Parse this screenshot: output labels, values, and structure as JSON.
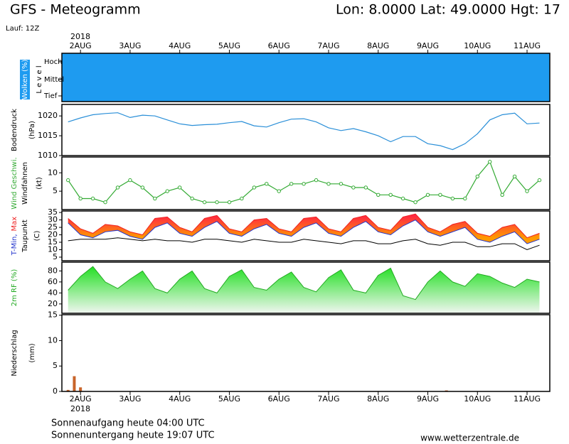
{
  "header": {
    "title": "GFS - Meteogramm",
    "location": "Lon: 8.0000 Lat: 49.0000 Hgt: 17",
    "run": "Lauf: 12Z",
    "year": "2018"
  },
  "footer": {
    "sunrise": "Sonnenaufgang heute 04:00 UTC",
    "sunset": "Sonnenuntergang heute 19:07 UTC",
    "source": "www.wetterzentrale.de"
  },
  "time_axis": {
    "xlim": [
      15,
      251
    ],
    "xticks": [
      {
        "value": 24,
        "label": "2AUG"
      },
      {
        "value": 48,
        "label": "3AUG"
      },
      {
        "value": 72,
        "label": "4AUG"
      },
      {
        "value": 96,
        "label": "5AUG"
      },
      {
        "value": 120,
        "label": "6AUG"
      },
      {
        "value": 144,
        "label": "7AUG"
      },
      {
        "value": 168,
        "label": "8AUG"
      },
      {
        "value": 192,
        "label": "9AUG"
      },
      {
        "value": 216,
        "label": "10AUG"
      },
      {
        "value": 240,
        "label": "11AUG"
      }
    ],
    "x": [
      18,
      24,
      30,
      36,
      42,
      48,
      54,
      60,
      66,
      72,
      78,
      84,
      90,
      96,
      102,
      108,
      114,
      120,
      126,
      132,
      138,
      144,
      150,
      156,
      162,
      168,
      174,
      180,
      186,
      192,
      198,
      204,
      210,
      216,
      222,
      228,
      234,
      240,
      246
    ]
  },
  "chart_data": [
    {
      "type": "clouds",
      "ylabel": [
        "Wolken (%)",
        "L e v e l"
      ],
      "levels": [
        "Hoch",
        "Mittel",
        "Tief"
      ],
      "color": "#1e9bf0"
    },
    {
      "type": "line",
      "ylabel": [
        "Bodendruck",
        "(hPa)"
      ],
      "ylim": [
        1010,
        1022.9
      ],
      "yticks": [
        1010,
        1015,
        1020
      ],
      "series": [
        {
          "color": "#2a8fd8",
          "values": [
            1018.5,
            1019.5,
            1020.3,
            1020.6,
            1020.8,
            1019.6,
            1020.2,
            1020.0,
            1019.0,
            1018.0,
            1017.6,
            1017.8,
            1017.9,
            1018.3,
            1018.6,
            1017.5,
            1017.2,
            1018.3,
            1019.2,
            1019.3,
            1018.5,
            1017.0,
            1016.3,
            1016.8,
            1016.0,
            1015.0,
            1013.5,
            1014.8,
            1014.8,
            1013.0,
            1012.5,
            1011.5,
            1013.0,
            1015.5,
            1019.0,
            1020.3,
            1020.7,
            1018.0,
            1018.2
          ]
        }
      ]
    },
    {
      "type": "wind",
      "ylabel": [
        "Windfahnen",
        "(kt)"
      ],
      "ylim": [
        0,
        14.3
      ],
      "yticks": [
        5,
        10
      ],
      "series": [
        {
          "name": "Wind Geschwi.",
          "color": "#33aa33",
          "values": [
            8,
            3,
            3,
            2,
            6,
            8,
            6,
            3,
            5,
            6,
            3,
            2,
            2,
            2,
            3,
            6,
            7,
            5,
            7,
            7,
            8,
            7,
            7,
            6,
            6,
            4,
            4,
            3,
            2,
            4,
            4,
            3,
            3,
            9,
            13,
            4,
            9,
            5,
            8
          ]
        }
      ]
    },
    {
      "type": "temperature",
      "ylabel": [
        "(C)"
      ],
      "ylim": [
        2.6,
        36
      ],
      "yticks": [
        5,
        10,
        15,
        20,
        25,
        30,
        35
      ],
      "series": [
        {
          "name": "T-Min,",
          "color": "#2233cc",
          "values": [
            28,
            20,
            18,
            22,
            23,
            19,
            17,
            25,
            28,
            21,
            19,
            25,
            29,
            21,
            19,
            24,
            27,
            21,
            19,
            25,
            28,
            21,
            19,
            25,
            29,
            22,
            20,
            26,
            30,
            22,
            19,
            22,
            25,
            17,
            15,
            19,
            22,
            14,
            17
          ]
        },
        {
          "name": "Max",
          "color": "#ee2222",
          "values": [
            31,
            24,
            21,
            27,
            26,
            22,
            20,
            31,
            32,
            25,
            22,
            31,
            33,
            24,
            22,
            30,
            31,
            24,
            22,
            31,
            32,
            24,
            22,
            31,
            33,
            25,
            23,
            32,
            34,
            25,
            22,
            27,
            29,
            21,
            19,
            25,
            27,
            18,
            21
          ]
        },
        {
          "name": "Taupunkt",
          "color": "#000000",
          "values": [
            16,
            17,
            17,
            17,
            18,
            17,
            16,
            17,
            16,
            16,
            15,
            17,
            17,
            16,
            15,
            17,
            16,
            15,
            15,
            17,
            16,
            15,
            14,
            16,
            16,
            14,
            14,
            16,
            17,
            14,
            13,
            15,
            15,
            12,
            12,
            14,
            14,
            10,
            13
          ]
        }
      ]
    },
    {
      "type": "area",
      "ylabel": [],
      "ylim": [
        3,
        96
      ],
      "yticks": [
        20,
        40,
        60,
        80
      ],
      "series": [
        {
          "name": "2m RF (%)",
          "color": "#22aa22",
          "values": [
            45,
            70,
            88,
            60,
            48,
            65,
            80,
            48,
            40,
            65,
            80,
            48,
            40,
            70,
            82,
            50,
            45,
            65,
            78,
            50,
            42,
            68,
            82,
            45,
            40,
            72,
            85,
            35,
            28,
            60,
            80,
            60,
            52,
            75,
            70,
            58,
            50,
            65,
            60
          ]
        }
      ]
    },
    {
      "type": "bar",
      "ylabel": [
        "Niederschlag",
        "(mm)"
      ],
      "ylim": [
        0,
        15.1
      ],
      "yticks": [
        0,
        5,
        10,
        15
      ],
      "x": [
        18,
        21,
        24,
        201
      ],
      "series": [
        {
          "color": "#c8642a",
          "values": [
            0.3,
            3.0,
            0.8,
            0.2
          ]
        }
      ]
    }
  ]
}
